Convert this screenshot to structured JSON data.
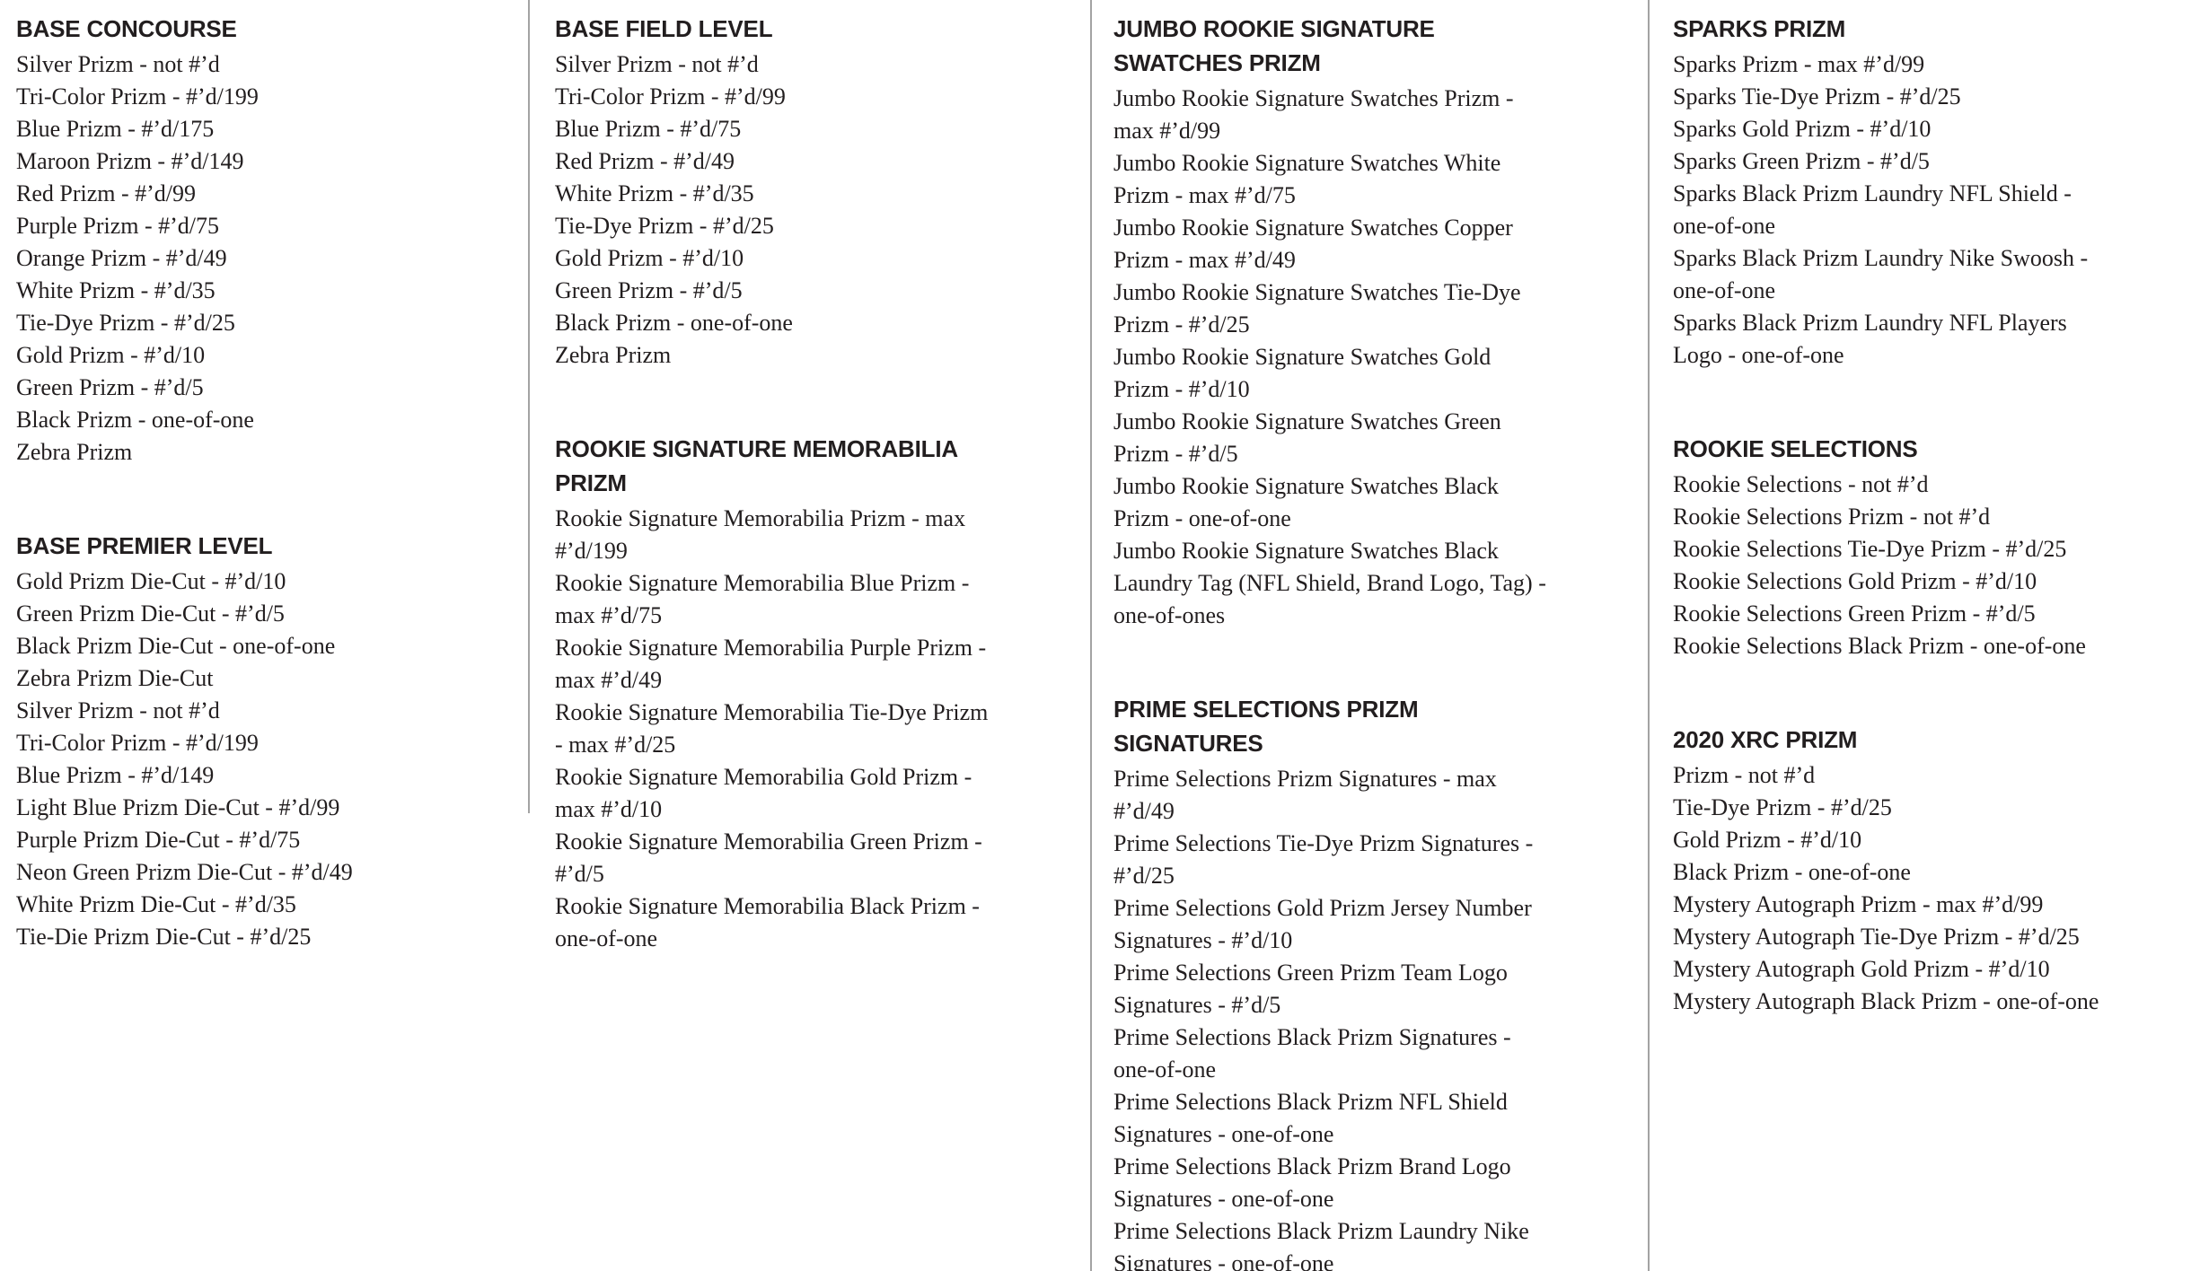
{
  "page": {
    "background_color": "#ffffff",
    "text_color": "#221e1f",
    "divider_color": "#a3a3a3"
  },
  "columns": [
    {
      "sections": [
        {
          "title": "BASE CONCOURSE",
          "items": [
            "Silver Prizm - not #’d",
            "Tri-Color Prizm - #’d/199",
            "Blue Prizm - #’d/175",
            "Maroon Prizm - #’d/149",
            "Red Prizm - #’d/99",
            "Purple Prizm - #’d/75",
            "Orange Prizm - #’d/49",
            "White Prizm - #’d/35",
            "Tie-Dye Prizm - #’d/25",
            "Gold Prizm - #’d/10",
            "Green Prizm - #’d/5",
            "Black Prizm - one-of-one",
            "Zebra Prizm"
          ]
        },
        {
          "title": "BASE PREMIER LEVEL",
          "items": [
            "Gold Prizm Die-Cut - #’d/10",
            "Green Prizm Die-Cut - #’d/5",
            "Black Prizm Die-Cut - one-of-one",
            "Zebra Prizm Die-Cut",
            "Silver Prizm - not #’d",
            "Tri-Color Prizm - #’d/199",
            "Blue Prizm - #’d/149",
            "Light Blue Prizm Die-Cut - #’d/99",
            "Purple Prizm Die-Cut - #’d/75",
            "Neon Green Prizm Die-Cut - #’d/49",
            "White Prizm Die-Cut - #’d/35",
            "Tie-Die Prizm Die-Cut - #’d/25"
          ]
        }
      ]
    },
    {
      "sections": [
        {
          "title": "BASE FIELD LEVEL",
          "items": [
            "Silver Prizm - not #’d",
            "Tri-Color Prizm - #’d/99",
            "Blue Prizm - #’d/75",
            "Red Prizm - #’d/49",
            "White Prizm - #’d/35",
            "Tie-Dye Prizm - #’d/25",
            "Gold Prizm - #’d/10",
            "Green Prizm - #’d/5",
            "Black Prizm - one-of-one",
            "Zebra Prizm"
          ]
        },
        {
          "title": "ROOKIE SIGNATURE MEMORABILIA PRIZM",
          "items": [
            "Rookie Signature Memorabilia Prizm - max #’d/199",
            "Rookie Signature Memorabilia Blue Prizm - max #’d/75",
            "Rookie Signature Memorabilia Purple Prizm - max #’d/49",
            "Rookie Signature Memorabilia Tie-Dye Prizm - max #’d/25",
            "Rookie Signature Memorabilia Gold Prizm - max #’d/10",
            "Rookie Signature Memorabilia Green Prizm - #’d/5",
            "Rookie Signature Memorabilia Black Prizm - one-of-one"
          ]
        }
      ]
    },
    {
      "sections": [
        {
          "title": "JUMBO ROOKIE SIGNATURE SWATCHES PRIZM",
          "items": [
            "Jumbo Rookie Signature Swatches Prizm - max #’d/99",
            "Jumbo Rookie Signature Swatches White Prizm - max #’d/75",
            "Jumbo Rookie Signature Swatches Copper Prizm - max #’d/49",
            "Jumbo Rookie Signature Swatches Tie-Dye Prizm - #’d/25",
            "Jumbo Rookie Signature Swatches Gold Prizm - #’d/10",
            "Jumbo Rookie Signature Swatches Green Prizm - #’d/5",
            "Jumbo Rookie Signature Swatches Black Prizm - one-of-one",
            "Jumbo Rookie Signature Swatches Black Laundry Tag (NFL Shield, Brand Logo, Tag) - one-of-ones"
          ]
        },
        {
          "title": "PRIME SELECTIONS PRIZM SIGNATURES",
          "items": [
            "Prime Selections Prizm Signatures - max #’d/49",
            "Prime Selections Tie-Dye Prizm Signatures - #’d/25",
            "Prime Selections Gold Prizm Jersey Number Signatures - #’d/10",
            "Prime Selections Green Prizm Team Logo Signatures - #’d/5",
            "Prime Selections Black Prizm Signatures - one-of-one",
            "Prime Selections Black Prizm NFL Shield Signatures - one-of-one",
            "Prime Selections Black Prizm Brand Logo Signatures - one-of-one",
            "Prime Selections Black Prizm Laundry Nike Signatures - one-of-one"
          ]
        }
      ]
    },
    {
      "sections": [
        {
          "title": "SPARKS PRIZM",
          "items": [
            "Sparks Prizm - max #’d/99",
            "Sparks Tie-Dye Prizm - #’d/25",
            "Sparks Gold Prizm - #’d/10",
            "Sparks Green Prizm - #’d/5",
            "Sparks Black Prizm Laundry NFL Shield - one-of-one",
            "Sparks Black Prizm Laundry Nike Swoosh - one-of-one",
            "Sparks Black Prizm Laundry NFL Players Logo - one-of-one"
          ]
        },
        {
          "title": "ROOKIE SELECTIONS",
          "items": [
            "Rookie Selections - not #’d",
            "Rookie Selections Prizm - not #’d",
            "Rookie Selections Tie-Dye Prizm - #’d/25",
            "Rookie Selections Gold Prizm - #’d/10",
            "Rookie Selections Green Prizm - #’d/5",
            "Rookie Selections Black Prizm - one-of-one"
          ]
        },
        {
          "title": "2020 XRC PRIZM",
          "items": [
            "Prizm - not #’d",
            "Tie-Dye Prizm - #’d/25",
            "Gold Prizm - #’d/10",
            "Black Prizm - one-of-one",
            "Mystery Autograph Prizm - max #’d/99",
            "Mystery Autograph Tie-Dye Prizm - #’d/25",
            "Mystery Autograph Gold Prizm - #’d/10",
            "Mystery Autograph Black Prizm - one-of-one"
          ]
        }
      ]
    }
  ]
}
